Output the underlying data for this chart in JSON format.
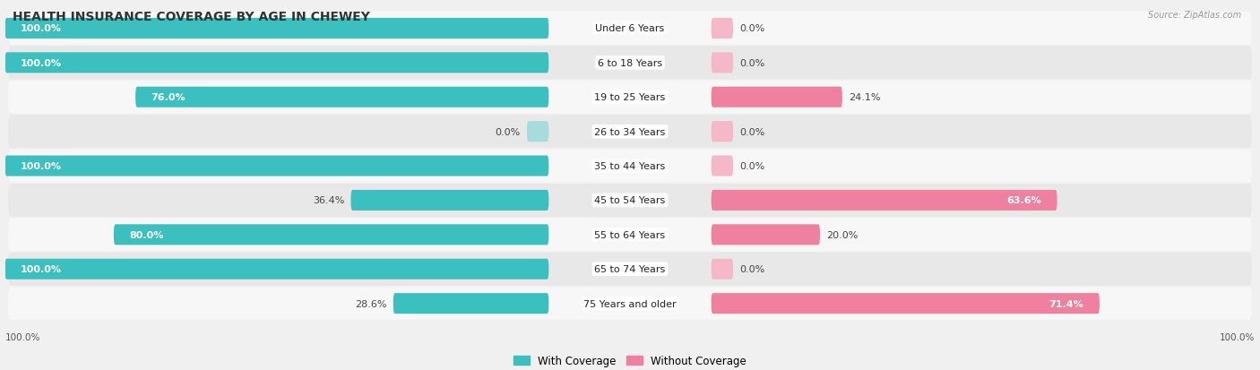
{
  "title": "HEALTH INSURANCE COVERAGE BY AGE IN CHEWEY",
  "source": "Source: ZipAtlas.com",
  "categories": [
    "Under 6 Years",
    "6 to 18 Years",
    "19 to 25 Years",
    "26 to 34 Years",
    "35 to 44 Years",
    "45 to 54 Years",
    "55 to 64 Years",
    "65 to 74 Years",
    "75 Years and older"
  ],
  "with_coverage": [
    100.0,
    100.0,
    76.0,
    0.0,
    100.0,
    36.4,
    80.0,
    100.0,
    28.6
  ],
  "without_coverage": [
    0.0,
    0.0,
    24.1,
    0.0,
    0.0,
    63.6,
    20.0,
    0.0,
    71.4
  ],
  "color_with": "#3BBFBF",
  "color_without": "#F080A0",
  "color_with_light": "#A8DCDC",
  "bg_color": "#f0f0f0",
  "row_bg_light": "#f7f7f7",
  "row_bg_dark": "#e8e8e8",
  "title_fontsize": 10,
  "label_fontsize": 8,
  "legend_fontsize": 8.5,
  "axis_label_fontsize": 7.5,
  "max_val": 100.0
}
